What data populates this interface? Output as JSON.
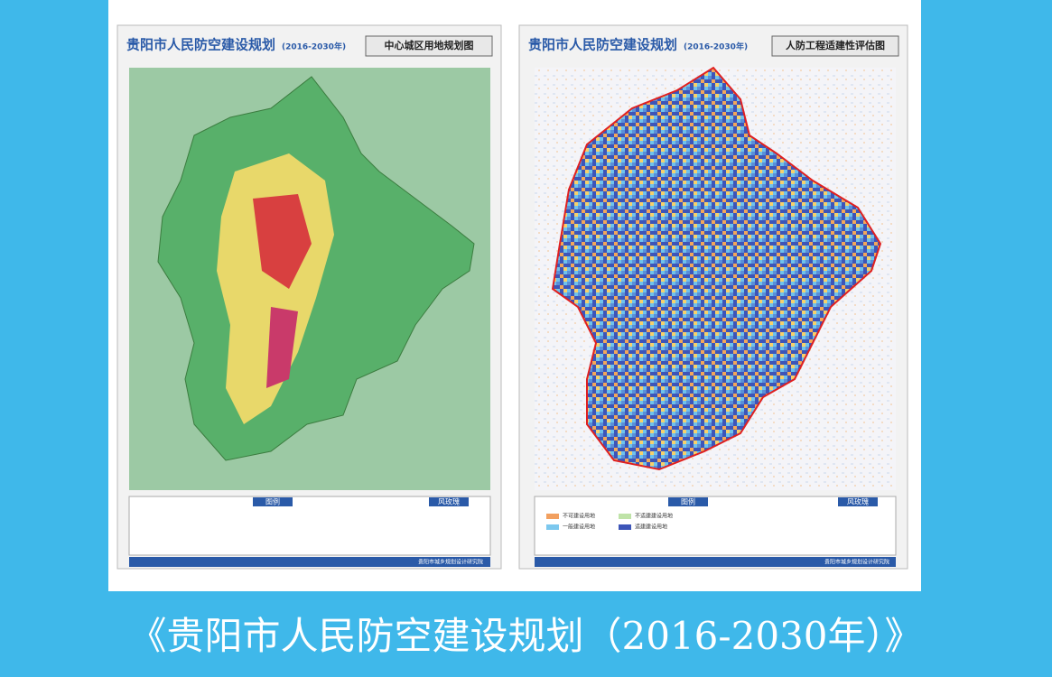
{
  "caption": "《贵阳市人民防空建设规划（2016-2030年）》",
  "maps": [
    {
      "series_title": "贵阳市人民防空建设规划",
      "period": "(2016-2030年)",
      "title": "中心城区用地规划图",
      "legend_heading": "图例",
      "compass_heading": "风玫瑰",
      "footer": "贵阳市城乡规划设计研究院"
    },
    {
      "series_title": "贵阳市人民防空建设规划",
      "period": "(2016-2030年)",
      "title": "人防工程适建性评估图",
      "legend_heading": "图例",
      "compass_heading": "风玫瑰",
      "footer": "贵阳市城乡规划设计研究院",
      "legend": [
        "不可建设用地",
        "一般建设用地",
        "不适建建设用地",
        "适建建设用地"
      ]
    }
  ]
}
